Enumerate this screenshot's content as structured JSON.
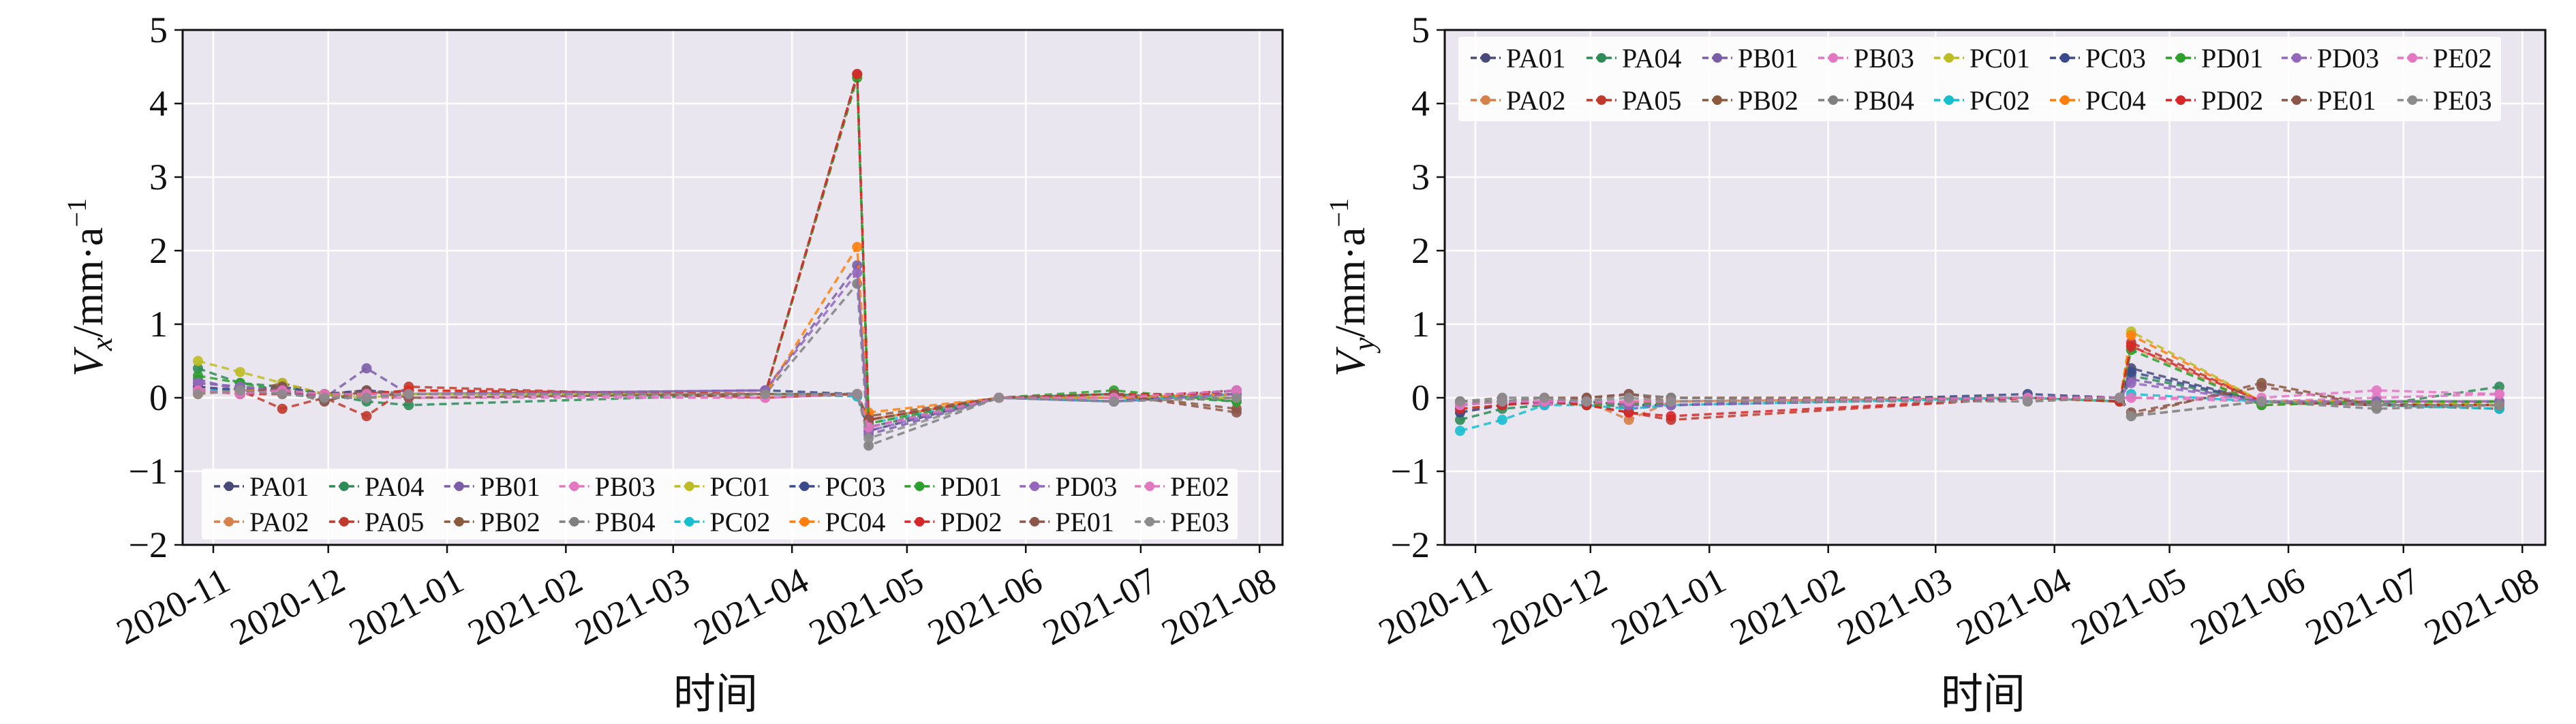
{
  "chart_data": [
    {
      "type": "line",
      "panel": "left",
      "ylabel": "Vx/mm·a⁻¹",
      "ylabel_parts": {
        "var": "V",
        "sub": "x",
        "unit": "/mm·a",
        "sup": "−1"
      },
      "xlabel": "时间",
      "ylim": [
        -2,
        5
      ],
      "yticks": [
        -2,
        -1,
        0,
        1,
        2,
        3,
        4,
        5
      ],
      "ytick_labels": [
        "−2",
        "−1",
        "0",
        "1",
        "2",
        "3",
        "4",
        "5"
      ],
      "xlim": [
        "2020-10-24",
        "2021-08-07"
      ],
      "x_tick_labels": [
        "2020-11",
        "2020-12",
        "2021-01",
        "2021-02",
        "2021-03",
        "2021-04",
        "2021-05",
        "2021-06",
        "2021-07",
        "2021-08"
      ],
      "x_tick_dates": [
        "2020-11-01",
        "2020-12-01",
        "2021-01-01",
        "2021-02-01",
        "2021-03-01",
        "2021-04-01",
        "2021-05-01",
        "2021-06-01",
        "2021-07-01",
        "2021-08-01"
      ],
      "legend_position": "bottom-left",
      "dates": [
        "2020-10-28",
        "2020-11-08",
        "2020-11-19",
        "2020-11-30",
        "2020-12-11",
        "2020-12-22",
        "2021-03-25",
        "2021-04-18",
        "2021-04-21",
        "2021-05-25",
        "2021-06-24",
        "2021-07-26"
      ],
      "series": [
        {
          "name": "PA01",
          "color": "#4a4a7a",
          "values": [
            0.2,
            0.15,
            0.1,
            0.05,
            0.0,
            0.05,
            0.05,
            0.02,
            -0.45,
            0.0,
            -0.05,
            0.05
          ]
        },
        {
          "name": "PA02",
          "color": "#d6804a",
          "values": [
            0.1,
            0.12,
            0.08,
            0.0,
            0.05,
            0.1,
            0.05,
            0.02,
            -0.3,
            0.0,
            -0.05,
            0.0
          ]
        },
        {
          "name": "PA04",
          "color": "#2e8b57",
          "values": [
            0.4,
            0.2,
            0.15,
            0.05,
            -0.05,
            -0.1,
            0.05,
            0.05,
            -0.4,
            0.0,
            0.05,
            -0.05
          ]
        },
        {
          "name": "PA05",
          "color": "#c0392b",
          "values": [
            0.15,
            0.1,
            -0.15,
            0.0,
            -0.25,
            0.15,
            0.0,
            0.05,
            -0.3,
            0.0,
            0.0,
            0.1
          ]
        },
        {
          "name": "PB01",
          "color": "#7b5ea7",
          "values": [
            0.25,
            0.1,
            0.1,
            0.0,
            0.4,
            0.05,
            0.1,
            1.8,
            -0.5,
            0.0,
            -0.05,
            0.05
          ]
        },
        {
          "name": "PB02",
          "color": "#8b5a3c",
          "values": [
            0.1,
            0.05,
            0.2,
            0.05,
            0.1,
            0.05,
            0.05,
            4.4,
            -0.25,
            0.0,
            0.05,
            -0.15
          ]
        },
        {
          "name": "PB03",
          "color": "#e377c2",
          "values": [
            0.15,
            0.1,
            0.05,
            0.05,
            0.0,
            0.0,
            0.0,
            0.05,
            -0.4,
            0.0,
            -0.05,
            0.05
          ]
        },
        {
          "name": "PB04",
          "color": "#7f7f7f",
          "values": [
            0.05,
            0.15,
            0.1,
            -0.05,
            0.1,
            0.05,
            0.05,
            1.55,
            -0.65,
            0.0,
            0.0,
            0.0
          ]
        },
        {
          "name": "PC01",
          "color": "#bcbd22",
          "values": [
            0.5,
            0.35,
            0.2,
            0.05,
            0.0,
            0.05,
            0.05,
            0.05,
            -0.3,
            0.0,
            0.0,
            0.0
          ]
        },
        {
          "name": "PC02",
          "color": "#17becf",
          "values": [
            0.1,
            0.1,
            0.05,
            0.0,
            0.05,
            0.05,
            0.05,
            0.02,
            -0.35,
            0.0,
            -0.05,
            0.05
          ]
        },
        {
          "name": "PC03",
          "color": "#3b4a8a",
          "values": [
            0.15,
            0.1,
            0.15,
            0.05,
            0.1,
            0.05,
            0.1,
            0.05,
            -0.4,
            0.0,
            -0.05,
            0.1
          ]
        },
        {
          "name": "PC04",
          "color": "#ff7f0e",
          "values": [
            0.05,
            0.1,
            0.1,
            0.0,
            0.05,
            0.1,
            0.05,
            2.05,
            -0.2,
            0.0,
            0.0,
            0.05
          ]
        },
        {
          "name": "PD01",
          "color": "#2ca02c",
          "values": [
            0.3,
            0.2,
            0.1,
            0.05,
            0.05,
            0.05,
            0.05,
            4.35,
            -0.35,
            0.0,
            0.1,
            -0.05
          ]
        },
        {
          "name": "PD02",
          "color": "#d62728",
          "values": [
            0.1,
            0.05,
            0.05,
            0.05,
            0.05,
            0.1,
            0.05,
            4.4,
            -0.3,
            0.0,
            0.05,
            0.05
          ]
        },
        {
          "name": "PD03",
          "color": "#9467bd",
          "values": [
            0.2,
            0.15,
            0.1,
            0.0,
            0.0,
            0.05,
            0.1,
            1.7,
            -0.45,
            0.0,
            -0.05,
            0.05
          ]
        },
        {
          "name": "PE01",
          "color": "#8c564b",
          "values": [
            0.1,
            0.05,
            0.15,
            -0.05,
            0.1,
            0.0,
            0.05,
            0.05,
            -0.3,
            0.0,
            0.05,
            -0.2
          ]
        },
        {
          "name": "PE02",
          "color": "#e377c2",
          "values": [
            0.1,
            0.05,
            0.1,
            0.05,
            0.05,
            0.05,
            0.0,
            0.05,
            -0.4,
            0.0,
            0.0,
            0.1
          ]
        },
        {
          "name": "PE03",
          "color": "#8c8c8c",
          "values": [
            0.05,
            0.1,
            0.05,
            0.0,
            0.0,
            0.05,
            0.05,
            0.05,
            -0.55,
            0.0,
            -0.05,
            0.0
          ]
        }
      ]
    },
    {
      "type": "line",
      "panel": "right",
      "ylabel": "Vy/mm·a⁻¹",
      "ylabel_parts": {
        "var": "V",
        "sub": "y",
        "unit": "/mm·a",
        "sup": "−1"
      },
      "xlabel": "时间",
      "ylim": [
        -2,
        5
      ],
      "yticks": [
        -2,
        -1,
        0,
        1,
        2,
        3,
        4,
        5
      ],
      "ytick_labels": [
        "−2",
        "−1",
        "0",
        "1",
        "2",
        "3",
        "4",
        "5"
      ],
      "xlim": [
        "2020-10-24",
        "2021-08-07"
      ],
      "x_tick_labels": [
        "2020-11",
        "2020-12",
        "2021-01",
        "2021-02",
        "2021-03",
        "2021-04",
        "2021-05",
        "2021-06",
        "2021-07",
        "2021-08"
      ],
      "x_tick_dates": [
        "2020-11-01",
        "2020-12-01",
        "2021-01-01",
        "2021-02-01",
        "2021-03-01",
        "2021-04-01",
        "2021-05-01",
        "2021-06-01",
        "2021-07-01",
        "2021-08-01"
      ],
      "legend_position": "top-left",
      "dates": [
        "2020-10-28",
        "2020-11-08",
        "2020-11-19",
        "2020-11-30",
        "2020-12-11",
        "2020-12-22",
        "2021-03-25",
        "2021-04-18",
        "2021-04-21",
        "2021-05-25",
        "2021-06-24",
        "2021-07-26"
      ],
      "series": [
        {
          "name": "PA01",
          "color": "#4a4a7a",
          "values": [
            -0.1,
            -0.05,
            -0.05,
            -0.1,
            -0.05,
            -0.1,
            0.0,
            -0.05,
            0.4,
            -0.05,
            -0.1,
            -0.05
          ]
        },
        {
          "name": "PA02",
          "color": "#d6804a",
          "values": [
            -0.2,
            -0.1,
            -0.05,
            -0.05,
            -0.3,
            -0.05,
            0.0,
            -0.05,
            0.7,
            -0.1,
            -0.05,
            -0.1
          ]
        },
        {
          "name": "PA04",
          "color": "#2e8b57",
          "values": [
            -0.3,
            -0.15,
            -0.1,
            -0.05,
            -0.1,
            -0.1,
            0.0,
            -0.05,
            0.3,
            -0.05,
            -0.1,
            0.15
          ]
        },
        {
          "name": "PA05",
          "color": "#c0392b",
          "values": [
            -0.15,
            -0.1,
            -0.05,
            -0.1,
            -0.2,
            -0.3,
            0.0,
            -0.05,
            0.75,
            -0.05,
            -0.1,
            -0.1
          ]
        },
        {
          "name": "PB01",
          "color": "#7b5ea7",
          "values": [
            -0.1,
            -0.05,
            -0.1,
            -0.05,
            -0.15,
            -0.1,
            0.0,
            -0.05,
            0.25,
            -0.05,
            -0.05,
            -0.05
          ]
        },
        {
          "name": "PB02",
          "color": "#8b5a3c",
          "values": [
            -0.05,
            -0.05,
            -0.05,
            0.0,
            0.05,
            0.0,
            0.0,
            0.0,
            -0.25,
            0.2,
            -0.1,
            -0.15
          ]
        },
        {
          "name": "PB03",
          "color": "#e377c2",
          "values": [
            -0.1,
            -0.05,
            -0.1,
            -0.05,
            -0.1,
            -0.05,
            0.0,
            0.0,
            0.0,
            -0.05,
            0.0,
            0.05
          ]
        },
        {
          "name": "PB04",
          "color": "#7f7f7f",
          "values": [
            -0.05,
            0.0,
            0.0,
            -0.05,
            0.05,
            0.0,
            -0.05,
            0.0,
            -0.25,
            -0.05,
            -0.15,
            -0.1
          ]
        },
        {
          "name": "PC01",
          "color": "#bcbd22",
          "values": [
            -0.15,
            -0.1,
            -0.05,
            -0.05,
            -0.1,
            -0.05,
            0.0,
            -0.05,
            0.9,
            -0.05,
            -0.05,
            -0.1
          ]
        },
        {
          "name": "PC02",
          "color": "#17becf",
          "values": [
            -0.45,
            -0.3,
            -0.1,
            -0.1,
            -0.15,
            -0.1,
            0.0,
            -0.05,
            0.05,
            -0.05,
            -0.1,
            -0.15
          ]
        },
        {
          "name": "PC03",
          "color": "#3b4a8a",
          "values": [
            -0.2,
            -0.1,
            -0.05,
            -0.05,
            -0.1,
            -0.1,
            0.05,
            0.0,
            0.35,
            -0.05,
            -0.1,
            -0.1
          ]
        },
        {
          "name": "PC04",
          "color": "#ff7f0e",
          "values": [
            -0.1,
            -0.05,
            -0.05,
            -0.1,
            -0.05,
            -0.05,
            0.0,
            -0.05,
            0.85,
            -0.05,
            -0.05,
            -0.05
          ]
        },
        {
          "name": "PD01",
          "color": "#2ca02c",
          "values": [
            -0.1,
            -0.05,
            -0.05,
            -0.1,
            -0.1,
            -0.05,
            0.0,
            -0.05,
            0.65,
            -0.1,
            -0.05,
            -0.05
          ]
        },
        {
          "name": "PD02",
          "color": "#d62728",
          "values": [
            -0.15,
            -0.1,
            -0.05,
            -0.1,
            -0.2,
            -0.25,
            0.0,
            -0.05,
            0.7,
            -0.05,
            -0.1,
            -0.1
          ]
        },
        {
          "name": "PD03",
          "color": "#9467bd",
          "values": [
            -0.1,
            -0.05,
            -0.05,
            -0.05,
            -0.1,
            -0.1,
            0.0,
            0.0,
            0.2,
            -0.05,
            -0.05,
            -0.05
          ]
        },
        {
          "name": "PE01",
          "color": "#8c564b",
          "values": [
            -0.05,
            -0.05,
            0.0,
            0.0,
            0.05,
            -0.05,
            0.0,
            0.0,
            -0.2,
            0.15,
            -0.1,
            -0.1
          ]
        },
        {
          "name": "PE02",
          "color": "#e377c2",
          "values": [
            -0.1,
            -0.05,
            -0.05,
            -0.05,
            -0.05,
            -0.05,
            0.0,
            0.0,
            0.0,
            0.0,
            0.1,
            0.05
          ]
        },
        {
          "name": "PE03",
          "color": "#8c8c8c",
          "values": [
            -0.05,
            -0.05,
            0.0,
            -0.05,
            0.0,
            -0.05,
            -0.05,
            0.0,
            -0.25,
            -0.05,
            -0.1,
            -0.1
          ]
        }
      ]
    }
  ],
  "legend_order": [
    "PA01",
    "PA04",
    "PB01",
    "PB03",
    "PC01",
    "PC03",
    "PD01",
    "PD03",
    "PE02",
    "PA02",
    "PA05",
    "PB02",
    "PB04",
    "PC02",
    "PC04",
    "PD02",
    "PE01",
    "PE03"
  ],
  "style": {
    "plot_background": "#eae6f0",
    "grid_color": "#ffffff",
    "frame_color": "#111111"
  }
}
